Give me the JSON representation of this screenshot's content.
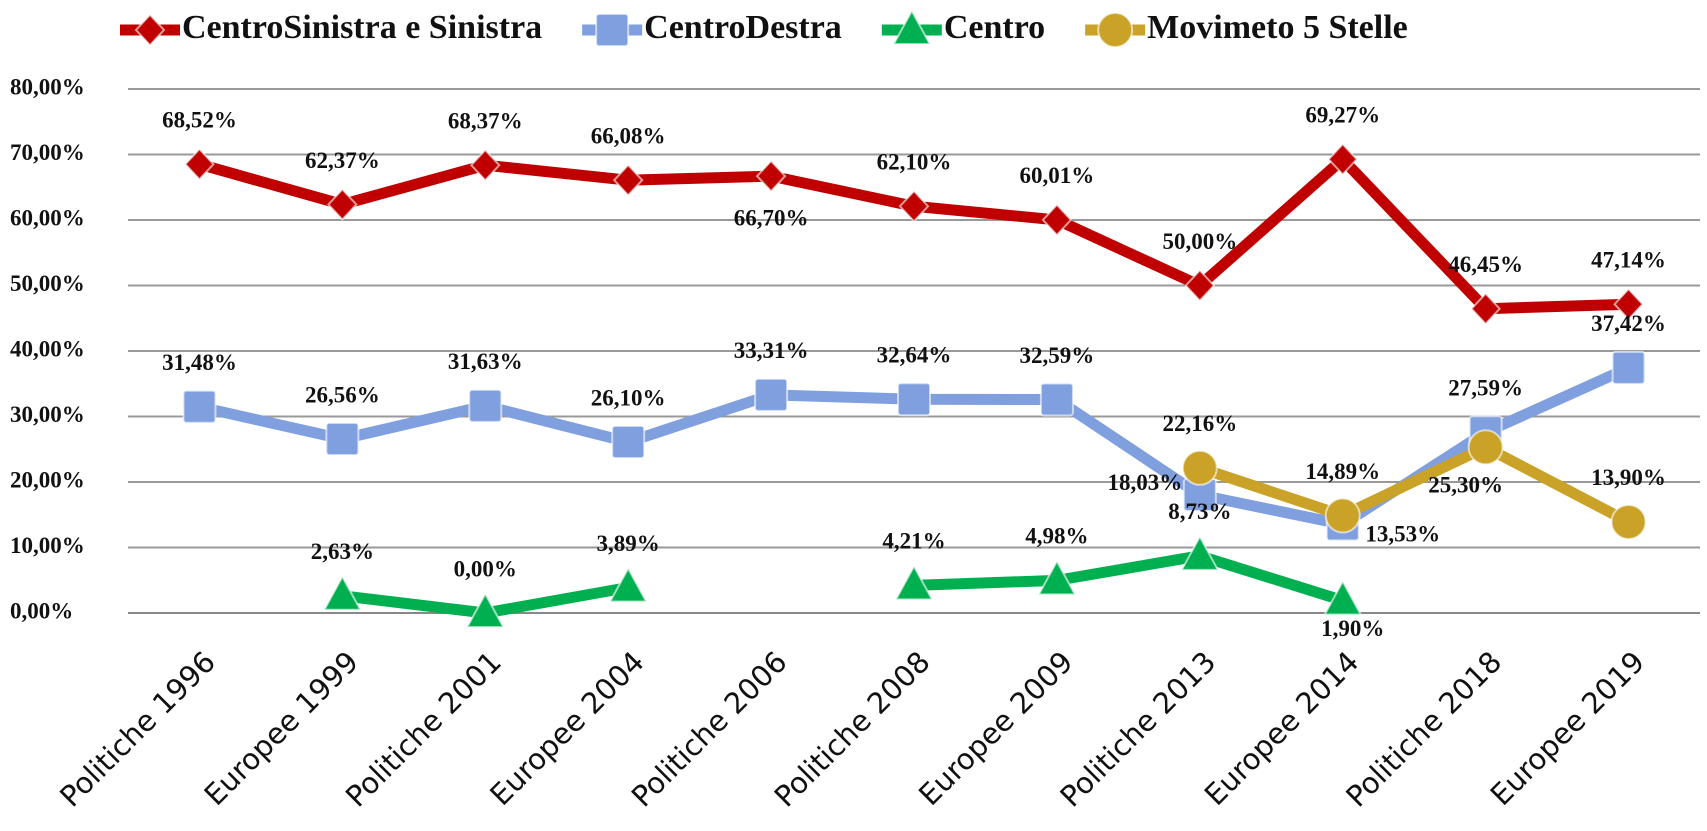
{
  "chart_data": {
    "type": "line",
    "categories": [
      "Politiche 1996",
      "Europee 1999",
      "Politiche 2001",
      "Europee 2004",
      "Politiche 2006",
      "Politiche 2008",
      "Europee 2009",
      "Politiche 2013",
      "Europee 2014",
      "Politiche 2018",
      "Europee 2019"
    ],
    "series": [
      {
        "name": "CentroSinistra e Sinistra",
        "color": "#c00000",
        "marker": "diamond",
        "values": [
          68.52,
          62.37,
          68.37,
          66.08,
          66.7,
          62.1,
          60.01,
          50.0,
          69.27,
          46.45,
          47.14
        ],
        "value_labels": [
          "68,52%",
          "62,37%",
          "68,37%",
          "66,08%",
          "66,70%",
          "62,10%",
          "60,01%",
          "50,00%",
          "69,27%",
          "46,45%",
          "47,14%"
        ]
      },
      {
        "name": "CentroDestra",
        "color": "#7f9fdf",
        "marker": "square",
        "values": [
          31.48,
          26.56,
          31.63,
          26.1,
          33.31,
          32.64,
          32.59,
          18.03,
          13.53,
          27.59,
          37.42
        ],
        "value_labels": [
          "31,48%",
          "26,56%",
          "31,63%",
          "26,10%",
          "33,31%",
          "32,64%",
          "32,59%",
          "18,03%",
          "13,53%",
          "27,59%",
          "37,42%"
        ]
      },
      {
        "name": "Centro",
        "color": "#00b050",
        "marker": "triangle",
        "values": [
          null,
          2.63,
          0.0,
          3.89,
          null,
          4.21,
          4.98,
          8.73,
          1.9,
          null,
          null
        ],
        "value_labels": [
          null,
          "2,63%",
          "0,00%",
          "3,89%",
          null,
          "4,21%",
          "4,98%",
          "8,73%",
          "1,90%",
          null,
          null
        ]
      },
      {
        "name": "Movimeto 5 Stelle",
        "color": "#c9a227",
        "marker": "circle",
        "values": [
          null,
          null,
          null,
          null,
          null,
          null,
          null,
          22.16,
          14.89,
          25.3,
          13.9
        ],
        "value_labels": [
          null,
          null,
          null,
          null,
          null,
          null,
          null,
          "22,16%",
          "14,89%",
          "25,30%",
          "13,90%"
        ]
      }
    ],
    "ylim": [
      0,
      80
    ],
    "yticks": [
      {
        "value": 0,
        "label": "0,00%"
      },
      {
        "value": 10,
        "label": "10,00%"
      },
      {
        "value": 20,
        "label": "20,00%"
      },
      {
        "value": 30,
        "label": "30,00%"
      },
      {
        "value": 40,
        "label": "40,00%"
      },
      {
        "value": 50,
        "label": "50,00%"
      },
      {
        "value": 60,
        "label": "60,00%"
      },
      {
        "value": 70,
        "label": "70,00%"
      },
      {
        "value": 80,
        "label": "80,00%"
      }
    ],
    "grid": true,
    "legend": "top"
  }
}
